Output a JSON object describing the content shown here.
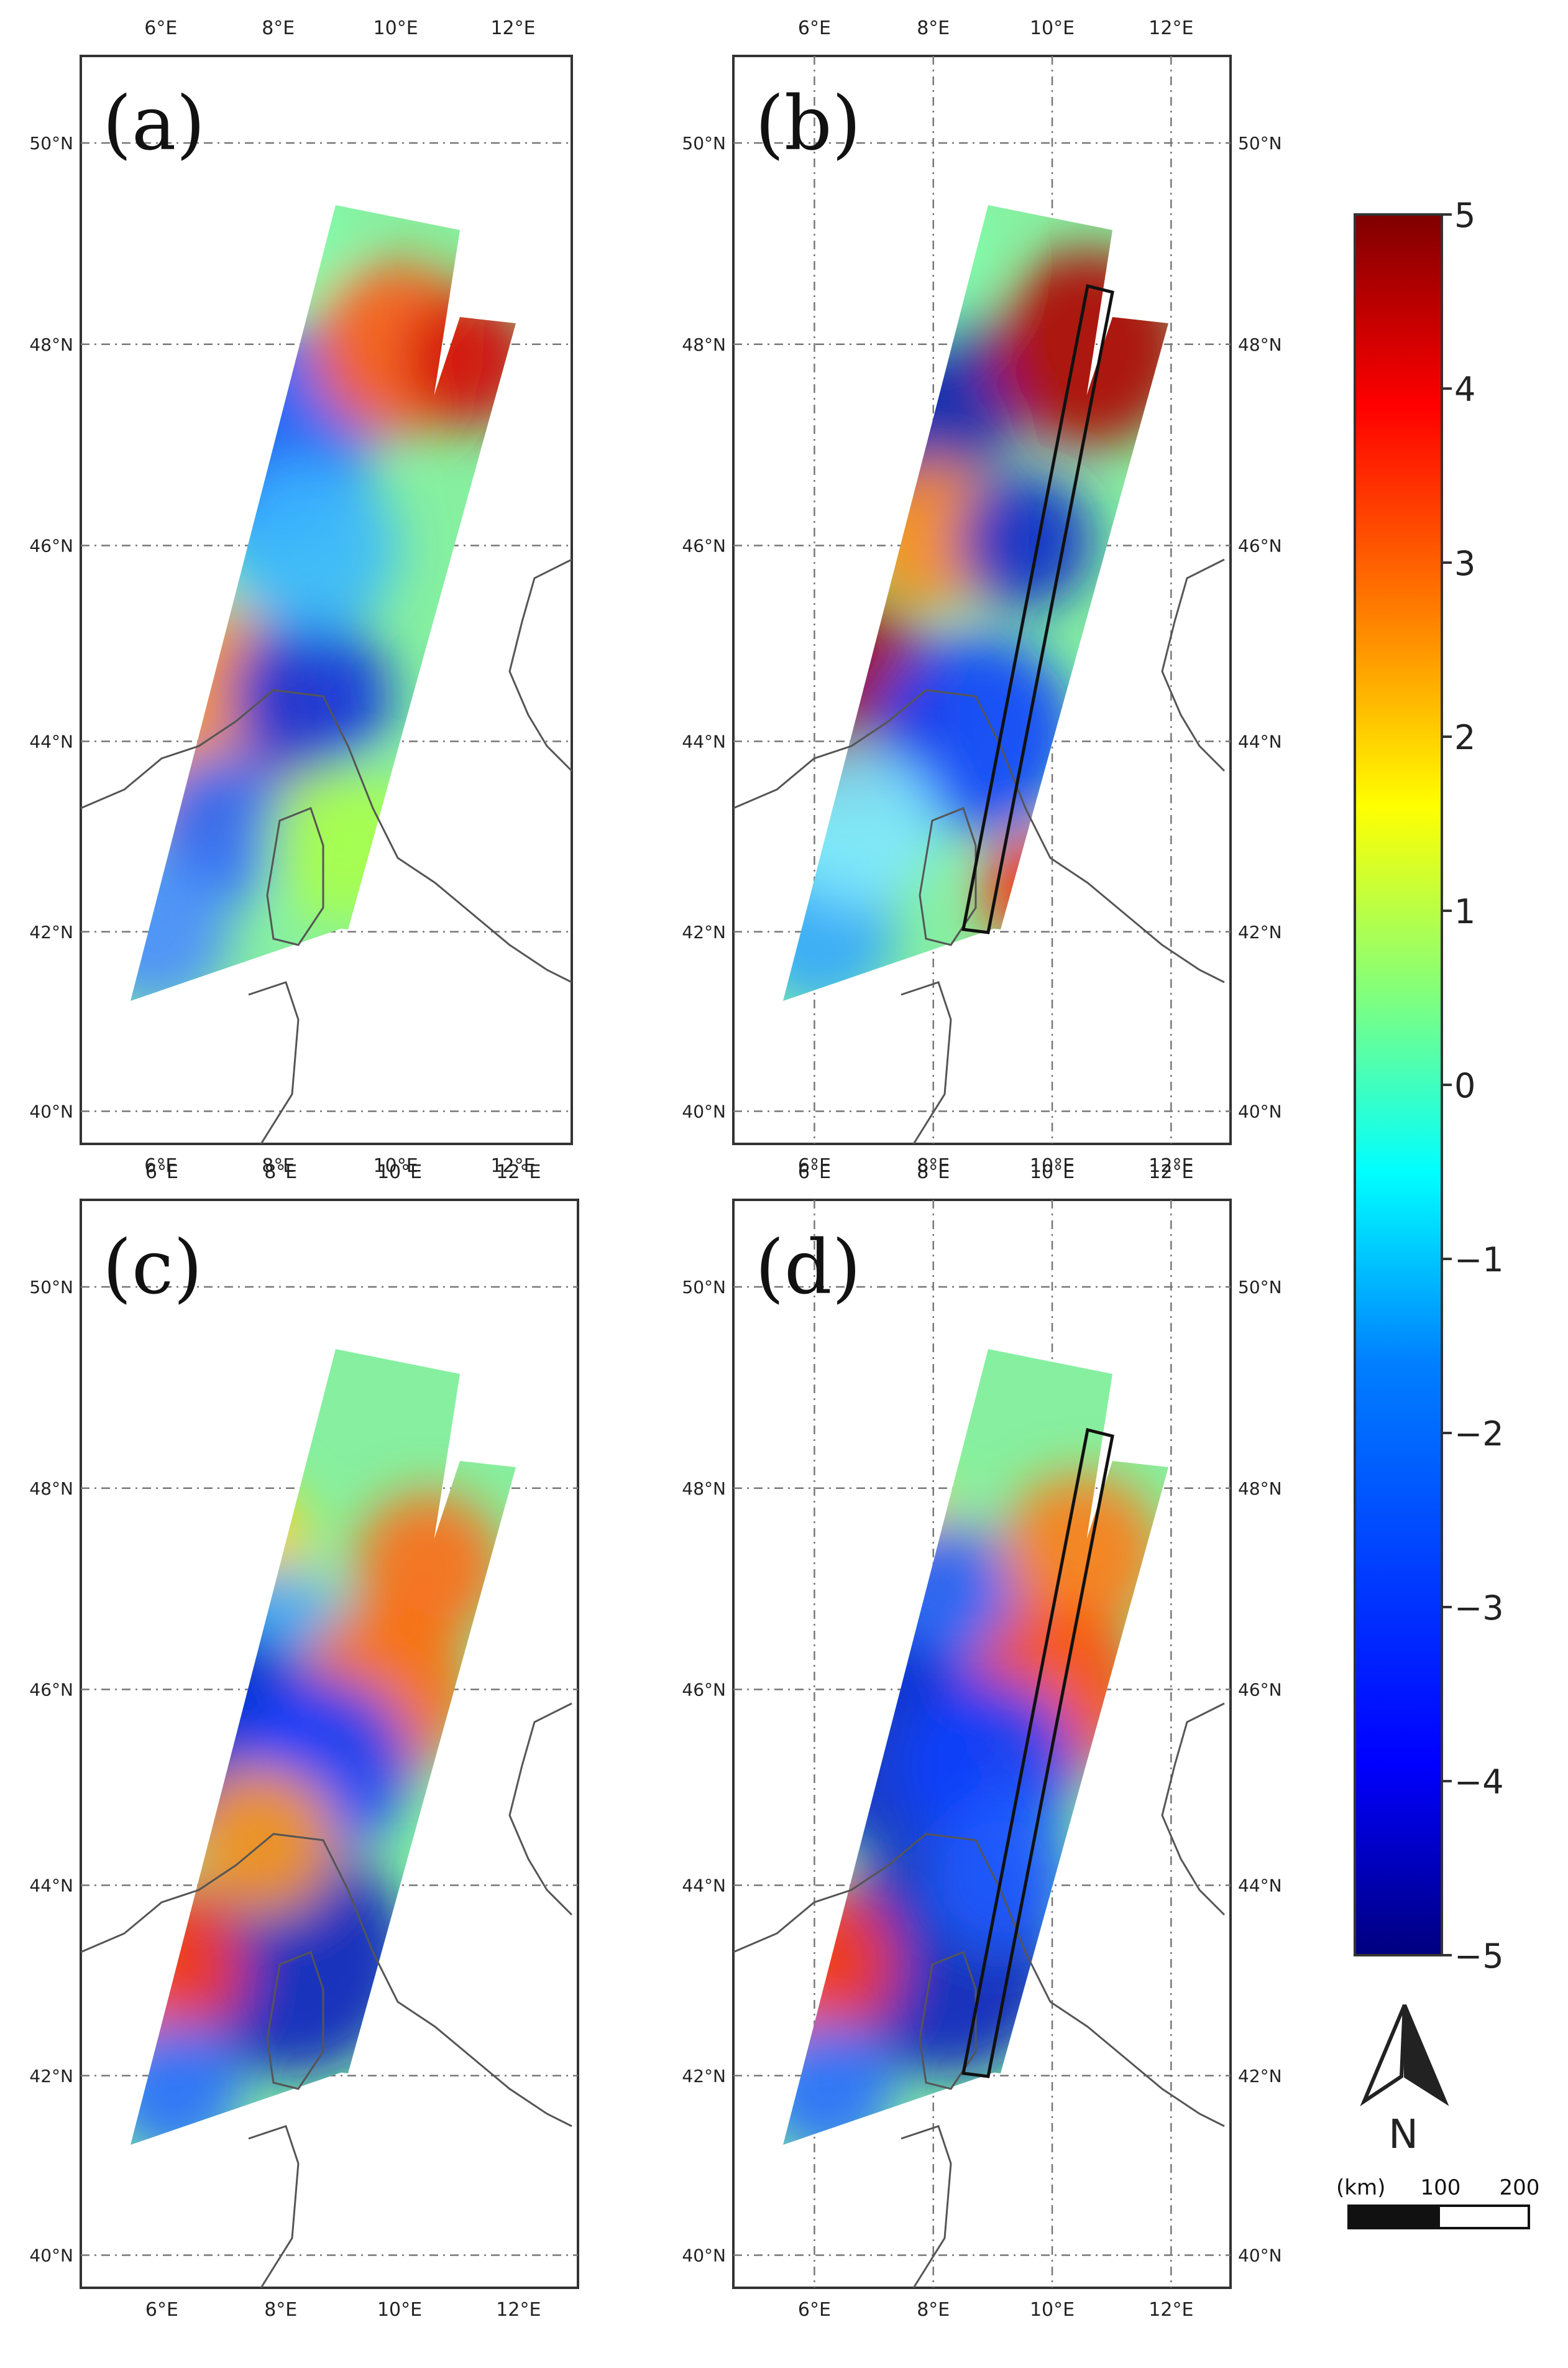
{
  "panels": [
    {
      "id": "a",
      "label": "(a)",
      "has_outline": false
    },
    {
      "id": "b",
      "label": "(b)",
      "has_outline": true
    },
    {
      "id": "c",
      "label": "(c)",
      "has_outline": false
    },
    {
      "id": "d",
      "label": "(d)",
      "has_outline": true
    }
  ],
  "axes": {
    "lon_ticks": [
      "6°E",
      "8°E",
      "10°E",
      "12°E"
    ],
    "lat_ticks": [
      "50°N",
      "48°N",
      "46°N",
      "44°N",
      "42°N",
      "40°N"
    ]
  },
  "colorbar": {
    "ticks": [
      "5",
      "4",
      "3",
      "2",
      "1",
      "0",
      "−1",
      "−2",
      "−3",
      "−4",
      "−5"
    ],
    "min": -5,
    "max": 5,
    "colors": [
      "#00007f",
      "#0000ff",
      "#007fff",
      "#00ffff",
      "#7fff7f",
      "#ffff00",
      "#ff7f00",
      "#ff0000",
      "#7f0000"
    ]
  },
  "north_arrow": {
    "label": "N"
  },
  "scale_bar": {
    "unit": "(km)",
    "labels": [
      "100",
      "200"
    ]
  }
}
